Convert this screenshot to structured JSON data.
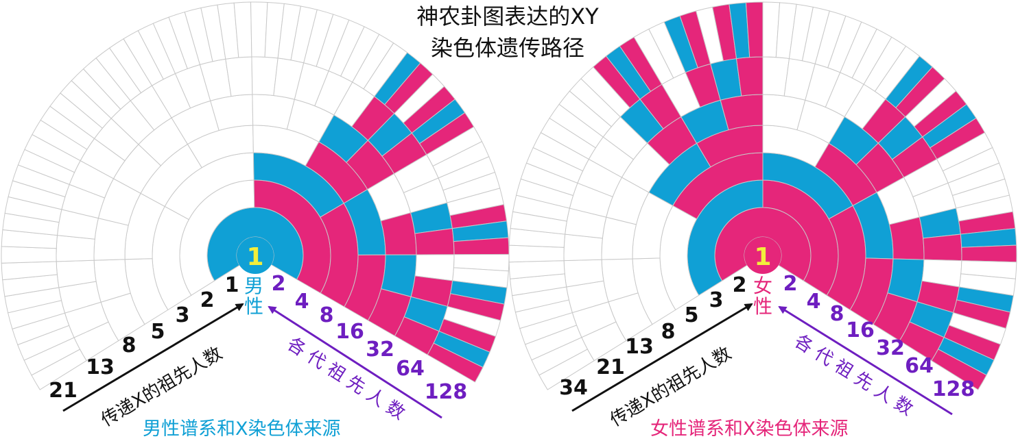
{
  "title_line1": "神农卦图表达的XY",
  "title_line2": "染色体遗传路径",
  "colors": {
    "cyan": "#10a0d5",
    "pink": "#e5267a",
    "purple": "#6e1ec0",
    "black": "#111111",
    "center_digit": "#f2ee3c",
    "grid": "#c8c8c8"
  },
  "male": {
    "center_number": "1",
    "sex_label": "男\n性",
    "caption": "男性谱系和X染色体来源",
    "x_ancestor_counts": [
      "1",
      "2",
      "3",
      "5",
      "8",
      "13",
      "21"
    ],
    "x_arrow_label": "传递X的祖先人数",
    "ancestor_counts": [
      "2",
      "4",
      "8",
      "16",
      "32",
      "64",
      "128"
    ],
    "count_arrow_label": "各 代 祖 先 人 数"
  },
  "female": {
    "center_number": "1",
    "sex_label": "女\n性",
    "caption": "女性谱系和X染色体来源",
    "x_ancestor_counts": [
      "2",
      "3",
      "5",
      "8",
      "13",
      "21",
      "34"
    ],
    "x_arrow_label": "传递X的祖先人数",
    "ancestor_counts": [
      "2",
      "4",
      "8",
      "16",
      "32",
      "64",
      "128"
    ],
    "count_arrow_label": "各 代 祖 先 人 数"
  }
}
